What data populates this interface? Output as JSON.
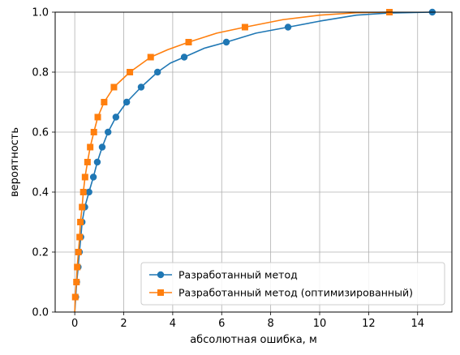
{
  "chart_data": {
    "type": "line",
    "xlabel": "абсолютная ошибка, м",
    "ylabel": "вероятность",
    "xlim": [
      -0.8,
      15.4
    ],
    "ylim": [
      0,
      1
    ],
    "grid": true,
    "legend_position": "lower-right",
    "x_ticks": [
      0,
      2,
      4,
      6,
      8,
      10,
      12,
      14
    ],
    "x_tick_labels": [
      "0",
      "2",
      "4",
      "6",
      "8",
      "10",
      "12",
      "14"
    ],
    "y_ticks": [
      0,
      0.2,
      0.4,
      0.6,
      0.8,
      1.0
    ],
    "y_tick_labels": [
      "0.0",
      "0.2",
      "0.4",
      "0.6",
      "0.8",
      "1.0"
    ],
    "series": [
      {
        "name": "Разработанный метод",
        "color": "#1f77b4",
        "marker": "circle",
        "markers": [
          [
            0.04,
            0.05
          ],
          [
            0.08,
            0.1
          ],
          [
            0.14,
            0.15
          ],
          [
            0.19,
            0.2
          ],
          [
            0.25,
            0.25
          ],
          [
            0.3,
            0.3
          ],
          [
            0.41,
            0.35
          ],
          [
            0.58,
            0.4
          ],
          [
            0.76,
            0.45
          ],
          [
            0.92,
            0.5
          ],
          [
            1.12,
            0.55
          ],
          [
            1.36,
            0.6
          ],
          [
            1.68,
            0.65
          ],
          [
            2.12,
            0.7
          ],
          [
            2.71,
            0.75
          ],
          [
            3.38,
            0.8
          ],
          [
            4.47,
            0.85
          ],
          [
            6.19,
            0.9
          ],
          [
            8.71,
            0.95
          ],
          [
            14.6,
            1.0
          ]
        ],
        "curve": [
          [
            0.0,
            0.0
          ],
          [
            0.04,
            0.05
          ],
          [
            0.08,
            0.1
          ],
          [
            0.14,
            0.15
          ],
          [
            0.19,
            0.2
          ],
          [
            0.25,
            0.25
          ],
          [
            0.3,
            0.3
          ],
          [
            0.41,
            0.35
          ],
          [
            0.58,
            0.4
          ],
          [
            0.76,
            0.45
          ],
          [
            0.92,
            0.5
          ],
          [
            1.12,
            0.55
          ],
          [
            1.36,
            0.6
          ],
          [
            1.68,
            0.65
          ],
          [
            2.12,
            0.7
          ],
          [
            2.71,
            0.75
          ],
          [
            3.38,
            0.8
          ],
          [
            3.9,
            0.83
          ],
          [
            4.47,
            0.85
          ],
          [
            5.3,
            0.88
          ],
          [
            6.19,
            0.9
          ],
          [
            7.4,
            0.93
          ],
          [
            8.71,
            0.95
          ],
          [
            10.0,
            0.97
          ],
          [
            11.5,
            0.99
          ],
          [
            12.8,
            0.997
          ],
          [
            14.6,
            1.0
          ]
        ]
      },
      {
        "name": "Разработанный метод (оптимизированный)",
        "color": "#ff7f0e",
        "marker": "square",
        "markers": [
          [
            0.02,
            0.05
          ],
          [
            0.07,
            0.1
          ],
          [
            0.1,
            0.15
          ],
          [
            0.15,
            0.2
          ],
          [
            0.2,
            0.25
          ],
          [
            0.23,
            0.3
          ],
          [
            0.3,
            0.35
          ],
          [
            0.35,
            0.4
          ],
          [
            0.42,
            0.45
          ],
          [
            0.52,
            0.5
          ],
          [
            0.63,
            0.55
          ],
          [
            0.78,
            0.6
          ],
          [
            0.94,
            0.65
          ],
          [
            1.2,
            0.7
          ],
          [
            1.6,
            0.75
          ],
          [
            2.25,
            0.8
          ],
          [
            3.1,
            0.85
          ],
          [
            4.65,
            0.9
          ],
          [
            6.95,
            0.95
          ],
          [
            12.85,
            1.0
          ]
        ],
        "curve": [
          [
            0.0,
            0.0
          ],
          [
            0.02,
            0.05
          ],
          [
            0.07,
            0.1
          ],
          [
            0.1,
            0.15
          ],
          [
            0.15,
            0.2
          ],
          [
            0.2,
            0.25
          ],
          [
            0.23,
            0.3
          ],
          [
            0.3,
            0.35
          ],
          [
            0.35,
            0.4
          ],
          [
            0.42,
            0.45
          ],
          [
            0.52,
            0.5
          ],
          [
            0.63,
            0.55
          ],
          [
            0.78,
            0.6
          ],
          [
            0.94,
            0.65
          ],
          [
            1.2,
            0.7
          ],
          [
            1.6,
            0.75
          ],
          [
            2.25,
            0.8
          ],
          [
            3.1,
            0.85
          ],
          [
            3.8,
            0.875
          ],
          [
            4.65,
            0.9
          ],
          [
            5.8,
            0.93
          ],
          [
            6.95,
            0.95
          ],
          [
            8.5,
            0.975
          ],
          [
            10.0,
            0.99
          ],
          [
            11.5,
            0.998
          ],
          [
            12.85,
            1.0
          ]
        ]
      }
    ]
  }
}
